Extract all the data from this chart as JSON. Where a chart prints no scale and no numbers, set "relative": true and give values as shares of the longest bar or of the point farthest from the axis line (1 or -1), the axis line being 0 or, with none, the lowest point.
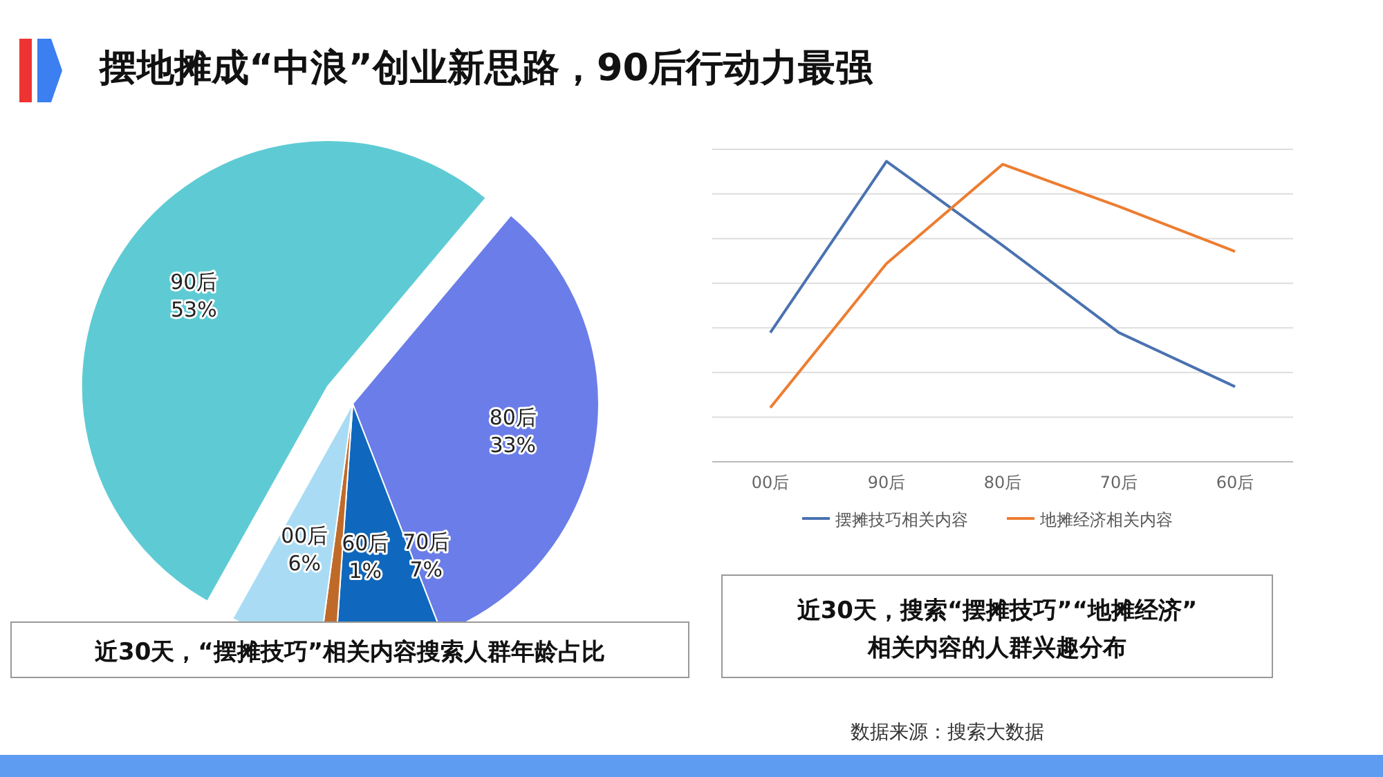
{
  "chart_data": [
    {
      "type": "pie",
      "title": "摆地摊成“中浪”创业新思路，90后行动力最强",
      "categories": [
        "80后",
        "70后",
        "60后",
        "00后",
        "90后"
      ],
      "values": [
        33,
        7,
        1,
        6,
        53
      ],
      "colors": [
        "#6b7de8",
        "#0f68bd",
        "#c06a2a",
        "#a9dcf4",
        "#5ecbd4"
      ],
      "value_labels": [
        "33%",
        "7%",
        "1%",
        "6%",
        "53%"
      ],
      "legend": false,
      "annotations": [
        "近30天，“摆摊技巧”相关内容搜索人群年龄占比"
      ]
    },
    {
      "type": "line",
      "relative": true,
      "categories": [
        "00后",
        "90后",
        "80后",
        "70后",
        "60后"
      ],
      "grid": "y",
      "legend": "bottom",
      "marker": "none",
      "series": [
        {
          "name": "摆摊技巧相关内容",
          "color": "#4a72b0",
          "values": [
            0.43,
            1,
            0.72,
            0.43,
            0.25
          ]
        },
        {
          "name": "地摊经济相关内容",
          "color": "#ed7d31",
          "values": [
            0.18,
            0.66,
            0.99,
            0.85,
            0.7
          ]
        }
      ],
      "annotations": [
        "近30天，搜索“摆摊技巧”“地摊经济”相关内容的人群兴趣分布",
        "数据来源：搜索大数据"
      ]
    }
  ]
}
